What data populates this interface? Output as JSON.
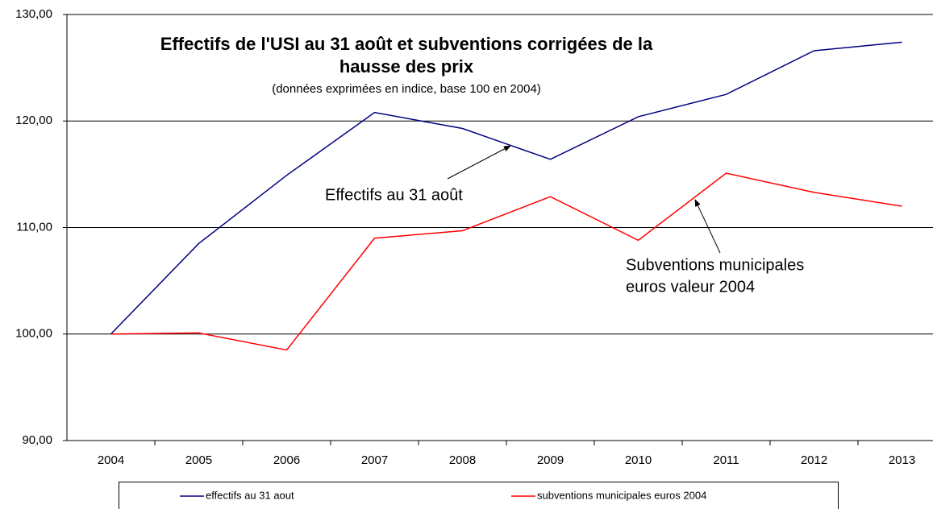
{
  "chart_data": {
    "type": "line",
    "title": [
      "Effectifs de l'USI au 31 août et subventions corrigées de la",
      "hausse des prix"
    ],
    "subtitle": "(données exprimées en indice, base 100 en 2004)",
    "categories": [
      "2004",
      "2005",
      "2006",
      "2007",
      "2008",
      "2009",
      "2010",
      "2011",
      "2012",
      "2013"
    ],
    "series": [
      {
        "name": "effectifs au 31 aout",
        "color": "#000080",
        "values": [
          100,
          108.5,
          114.9,
          120.8,
          119.3,
          116.4,
          120.4,
          122.5,
          126.6,
          127.4
        ]
      },
      {
        "name": "subventions municipales euros 2004",
        "color": "#ff0000",
        "values": [
          100,
          100.1,
          98.5,
          109.0,
          109.7,
          112.9,
          108.8,
          115.1,
          113.3,
          112.0
        ]
      }
    ],
    "annotations": [
      {
        "text": [
          "Effectifs au 31 août"
        ]
      },
      {
        "text": [
          "Subventions municipales",
          "euros valeur 2004"
        ]
      }
    ],
    "ylim": [
      90,
      130
    ],
    "yticks": [
      {
        "value": 90,
        "label": "90,00"
      },
      {
        "value": 100,
        "label": "100,00"
      },
      {
        "value": 110,
        "label": "110,00"
      },
      {
        "value": 120,
        "label": "120,00"
      },
      {
        "value": 130,
        "label": "130,00"
      }
    ],
    "grid": true,
    "legend": "bottom"
  }
}
